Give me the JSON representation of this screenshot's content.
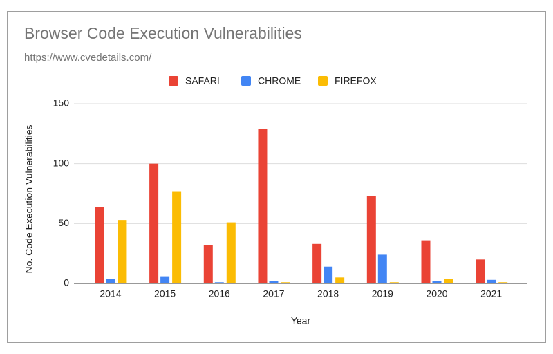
{
  "chart_data": {
    "type": "bar",
    "title": "Browser Code Execution Vulnerabilities",
    "subtitle": "https://www.cvedetails.com/",
    "x_label": "Year",
    "y_label": "No. Code Execution Vulnerabilities",
    "categories": [
      "2014",
      "2015",
      "2016",
      "2017",
      "2018",
      "2019",
      "2020",
      "2021"
    ],
    "series": [
      {
        "name": "SAFARI",
        "color": "#ea4335",
        "values": [
          64,
          100,
          32,
          129,
          33,
          73,
          36,
          20
        ]
      },
      {
        "name": "CHROME",
        "color": "#4285f4",
        "values": [
          4,
          6,
          1,
          2,
          14,
          24,
          2,
          3
        ]
      },
      {
        "name": "FIREFOX",
        "color": "#fbbc04",
        "values": [
          53,
          77,
          51,
          1,
          5,
          1,
          4,
          1
        ]
      }
    ],
    "ylim": [
      0,
      150
    ],
    "yticks": [
      0,
      50,
      100,
      150
    ],
    "grid": true,
    "legend": "top"
  }
}
